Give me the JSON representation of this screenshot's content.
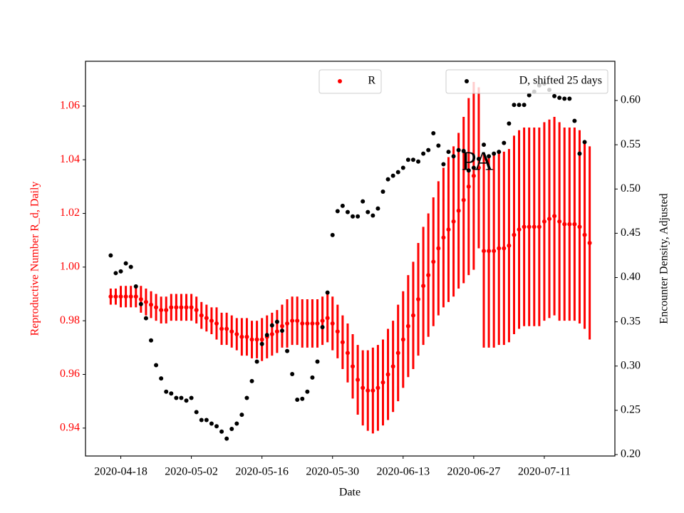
{
  "chart_data": {
    "type": "errorbar_scatter",
    "annotation": "PA",
    "xlabel": "Date",
    "ylabel": "Reproductive Number R_d, Daily",
    "y2label": "Encounter Density, Adjusted",
    "x": [
      "2020-04-16",
      "2020-04-17",
      "2020-04-18",
      "2020-04-19",
      "2020-04-20",
      "2020-04-21",
      "2020-04-22",
      "2020-04-23",
      "2020-04-24",
      "2020-04-25",
      "2020-04-26",
      "2020-04-27",
      "2020-04-28",
      "2020-04-29",
      "2020-04-30",
      "2020-05-01",
      "2020-05-02",
      "2020-05-03",
      "2020-05-04",
      "2020-05-05",
      "2020-05-06",
      "2020-05-07",
      "2020-05-08",
      "2020-05-09",
      "2020-05-10",
      "2020-05-11",
      "2020-05-12",
      "2020-05-13",
      "2020-05-14",
      "2020-05-15",
      "2020-05-16",
      "2020-05-17",
      "2020-05-18",
      "2020-05-19",
      "2020-05-20",
      "2020-05-21",
      "2020-05-22",
      "2020-05-23",
      "2020-05-24",
      "2020-05-25",
      "2020-05-26",
      "2020-05-27",
      "2020-05-28",
      "2020-05-29",
      "2020-05-30",
      "2020-05-31",
      "2020-06-01",
      "2020-06-02",
      "2020-06-03",
      "2020-06-04",
      "2020-06-05",
      "2020-06-06",
      "2020-06-07",
      "2020-06-08",
      "2020-06-09",
      "2020-06-10",
      "2020-06-11",
      "2020-06-12",
      "2020-06-13",
      "2020-06-14",
      "2020-06-15",
      "2020-06-16",
      "2020-06-17",
      "2020-06-18",
      "2020-06-19",
      "2020-06-20",
      "2020-06-21",
      "2020-06-22",
      "2020-06-23",
      "2020-06-24",
      "2020-06-25",
      "2020-06-26",
      "2020-06-27",
      "2020-06-28",
      "2020-06-29",
      "2020-06-30",
      "2020-07-01",
      "2020-07-02",
      "2020-07-03",
      "2020-07-04",
      "2020-07-05",
      "2020-07-06",
      "2020-07-07",
      "2020-07-08",
      "2020-07-09",
      "2020-07-10",
      "2020-07-11",
      "2020-07-12",
      "2020-07-13",
      "2020-07-14",
      "2020-07-15",
      "2020-07-16",
      "2020-07-17",
      "2020-07-18",
      "2020-07-19",
      "2020-07-20"
    ],
    "series": [
      {
        "name": "R",
        "color": "#ff0000",
        "axis": "y",
        "legend": "upper center",
        "values": [
          0.989,
          0.989,
          0.989,
          0.989,
          0.989,
          0.989,
          0.988,
          0.987,
          0.986,
          0.985,
          0.984,
          0.984,
          0.985,
          0.985,
          0.985,
          0.985,
          0.985,
          0.984,
          0.982,
          0.981,
          0.98,
          0.979,
          0.977,
          0.977,
          0.976,
          0.975,
          0.974,
          0.974,
          0.973,
          0.973,
          0.973,
          0.974,
          0.975,
          0.976,
          0.978,
          0.979,
          0.98,
          0.98,
          0.979,
          0.979,
          0.979,
          0.979,
          0.98,
          0.981,
          0.979,
          0.976,
          0.972,
          0.968,
          0.963,
          0.958,
          0.955,
          0.954,
          0.954,
          0.955,
          0.957,
          0.96,
          0.963,
          0.968,
          0.973,
          0.978,
          0.982,
          0.988,
          0.993,
          0.997,
          1.002,
          1.007,
          1.011,
          1.014,
          1.017,
          1.021,
          1.025,
          1.03,
          1.034,
          1.037,
          1.006,
          1.006,
          1.006,
          1.007,
          1.007,
          1.008,
          1.012,
          1.014,
          1.015,
          1.015,
          1.015,
          1.015,
          1.017,
          1.018,
          1.019,
          1.017,
          1.016,
          1.016,
          1.016,
          1.015,
          1.012,
          1.009
        ],
        "errors": [
          0.003,
          0.003,
          0.004,
          0.004,
          0.004,
          0.004,
          0.005,
          0.005,
          0.005,
          0.005,
          0.005,
          0.005,
          0.005,
          0.005,
          0.005,
          0.005,
          0.005,
          0.005,
          0.005,
          0.005,
          0.005,
          0.006,
          0.006,
          0.006,
          0.006,
          0.006,
          0.007,
          0.007,
          0.007,
          0.007,
          0.008,
          0.008,
          0.008,
          0.008,
          0.008,
          0.009,
          0.009,
          0.009,
          0.009,
          0.009,
          0.009,
          0.009,
          0.009,
          0.009,
          0.01,
          0.01,
          0.01,
          0.011,
          0.012,
          0.013,
          0.014,
          0.015,
          0.016,
          0.016,
          0.016,
          0.017,
          0.017,
          0.018,
          0.018,
          0.019,
          0.02,
          0.021,
          0.022,
          0.023,
          0.024,
          0.025,
          0.026,
          0.027,
          0.028,
          0.029,
          0.031,
          0.033,
          0.035,
          0.03,
          0.036,
          0.036,
          0.036,
          0.036,
          0.036,
          0.036,
          0.037,
          0.037,
          0.037,
          0.037,
          0.037,
          0.037,
          0.037,
          0.037,
          0.037,
          0.037,
          0.036,
          0.036,
          0.036,
          0.036,
          0.035,
          0.036
        ]
      },
      {
        "name": "D, shifted 25 days",
        "color": "#000000",
        "axis": "y2",
        "legend": "upper right",
        "values": [
          0.425,
          0.405,
          0.407,
          0.416,
          0.412,
          0.39,
          0.37,
          0.354,
          0.329,
          0.301,
          0.286,
          0.271,
          0.269,
          0.264,
          0.264,
          0.261,
          0.264,
          0.248,
          0.239,
          0.239,
          0.235,
          0.232,
          0.226,
          0.218,
          0.229,
          0.235,
          0.245,
          0.264,
          0.283,
          0.305,
          0.325,
          0.335,
          0.346,
          0.35,
          0.34,
          0.317,
          0.291,
          0.262,
          0.263,
          0.271,
          0.287,
          0.305,
          0.344,
          0.383,
          0.448,
          0.475,
          0.481,
          0.474,
          0.469,
          0.469,
          0.486,
          0.474,
          0.47,
          0.478,
          0.497,
          0.511,
          0.515,
          0.519,
          0.524,
          0.533,
          0.533,
          0.531,
          0.54,
          0.544,
          0.563,
          0.549,
          0.528,
          0.542,
          0.537,
          0.544,
          0.543,
          0.521,
          0.524,
          0.534,
          0.55,
          0.537,
          0.54,
          0.542,
          0.552,
          0.574,
          0.595,
          0.595,
          0.595,
          0.606,
          0.61,
          0.617,
          0.619,
          0.612,
          0.605,
          0.603,
          0.602,
          0.602,
          0.577,
          0.54,
          0.553,
          null
        ]
      }
    ],
    "xlim": [
      "2020-04-11",
      "2020-07-25"
    ],
    "xticks": [
      "2020-04-18",
      "2020-05-02",
      "2020-05-16",
      "2020-05-30",
      "2020-06-13",
      "2020-06-27",
      "2020-07-11"
    ],
    "ylim": [
      0.9296,
      1.0767
    ],
    "yticks": [
      0.94,
      0.96,
      0.98,
      {
        "value": 1,
        "label": "1.00"
      },
      1.02,
      1.04,
      1.06
    ],
    "y2lim": [
      0.1984,
      0.6443
    ],
    "y2ticks": [
      {
        "value": 0.2,
        "label": "0.20"
      },
      0.25,
      {
        "value": 0.3,
        "label": "0.30"
      },
      0.35,
      {
        "value": 0.4,
        "label": "0.40"
      },
      0.45,
      {
        "value": 0.5,
        "label": "0.50"
      },
      0.55,
      {
        "value": 0.6,
        "label": "0.60"
      }
    ],
    "ytick_color": "#ff0000",
    "grid": false
  }
}
